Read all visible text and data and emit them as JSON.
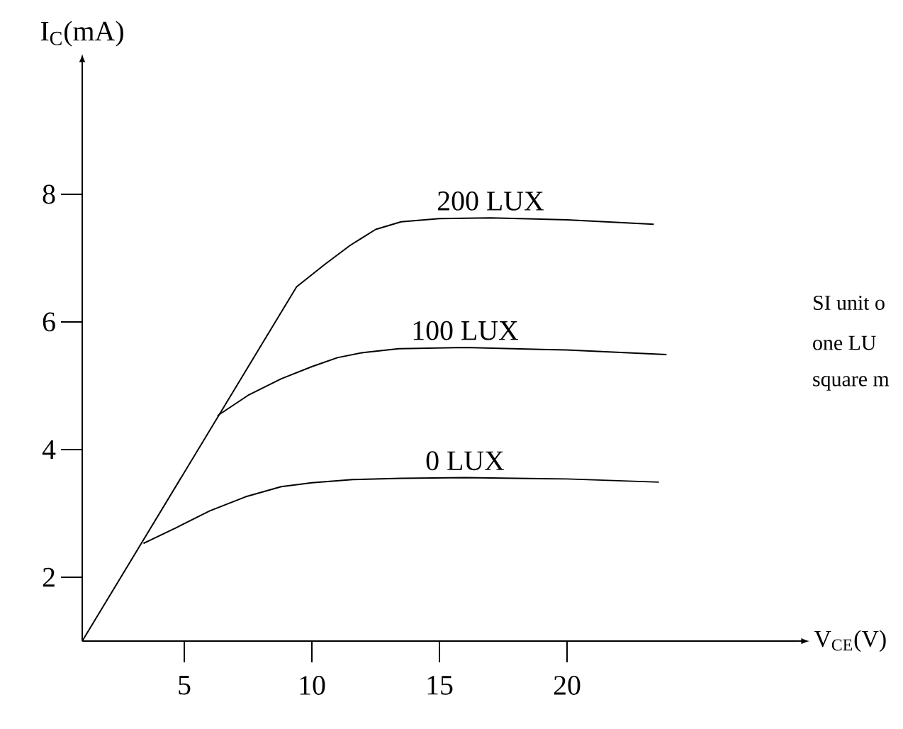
{
  "chart_data": {
    "type": "line",
    "xlabel": "V$_{CE}$(V)",
    "ylabel": "I$_{C}$(mA)",
    "xlim": [
      1,
      29
    ],
    "ylim": [
      1,
      10
    ],
    "xticks": [
      5,
      10,
      15,
      20
    ],
    "yticks": [
      2,
      4,
      6,
      8
    ],
    "marker": "none",
    "grid": false,
    "series": [
      {
        "name": "200 LUX",
        "color": "#000000",
        "x": [
          1,
          9.4,
          10.5,
          11.5,
          12.5,
          13.5,
          15,
          17,
          20,
          23.4
        ],
        "values": [
          1,
          6.55,
          6.9,
          7.2,
          7.45,
          7.57,
          7.62,
          7.63,
          7.6,
          7.53
        ]
      },
      {
        "name": "100 LUX",
        "color": "#000000",
        "x": [
          6.3,
          7.5,
          8.8,
          10,
          11,
          12,
          13.4,
          16,
          20,
          23.9
        ],
        "values": [
          4.53,
          4.85,
          5.11,
          5.3,
          5.44,
          5.52,
          5.58,
          5.6,
          5.56,
          5.49
        ]
      },
      {
        "name": "0 LUX",
        "color": "#000000",
        "x": [
          3.4,
          4.7,
          6,
          7.4,
          8.8,
          10,
          11.6,
          13.5,
          16,
          20,
          23.6
        ],
        "values": [
          2.53,
          2.78,
          3.04,
          3.26,
          3.42,
          3.48,
          3.53,
          3.55,
          3.56,
          3.54,
          3.49
        ]
      }
    ],
    "annotations": [
      "SI unit o",
      "one LU",
      "square m"
    ]
  }
}
